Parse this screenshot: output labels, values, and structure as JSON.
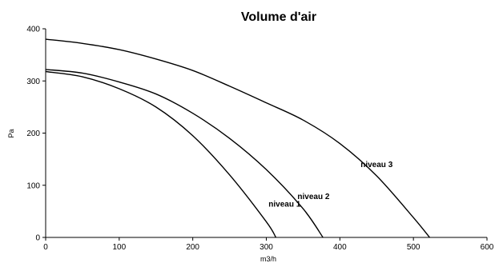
{
  "chart_data": {
    "type": "line",
    "title": "Volume d'air",
    "xlabel": "m3/h",
    "ylabel": "Pa",
    "xlim": [
      0,
      600
    ],
    "ylim": [
      0,
      400
    ],
    "xticks": [
      0,
      100,
      200,
      300,
      400,
      500,
      600
    ],
    "yticks": [
      0,
      100,
      200,
      300,
      400
    ],
    "grid": false,
    "series": [
      {
        "name": "niveau 1",
        "x": [
          0,
          50,
          100,
          150,
          200,
          250,
          300,
          313
        ],
        "y": [
          318,
          308,
          285,
          250,
          195,
          120,
          30,
          0
        ]
      },
      {
        "name": "niveau 2",
        "x": [
          0,
          50,
          100,
          150,
          200,
          250,
          300,
          350,
          377
        ],
        "y": [
          322,
          315,
          298,
          275,
          238,
          190,
          130,
          55,
          0
        ]
      },
      {
        "name": "niveau 3",
        "x": [
          0,
          50,
          100,
          150,
          200,
          250,
          300,
          350,
          400,
          450,
          500,
          522
        ],
        "y": [
          380,
          372,
          360,
          342,
          320,
          290,
          258,
          225,
          180,
          118,
          38,
          0
        ]
      }
    ]
  }
}
